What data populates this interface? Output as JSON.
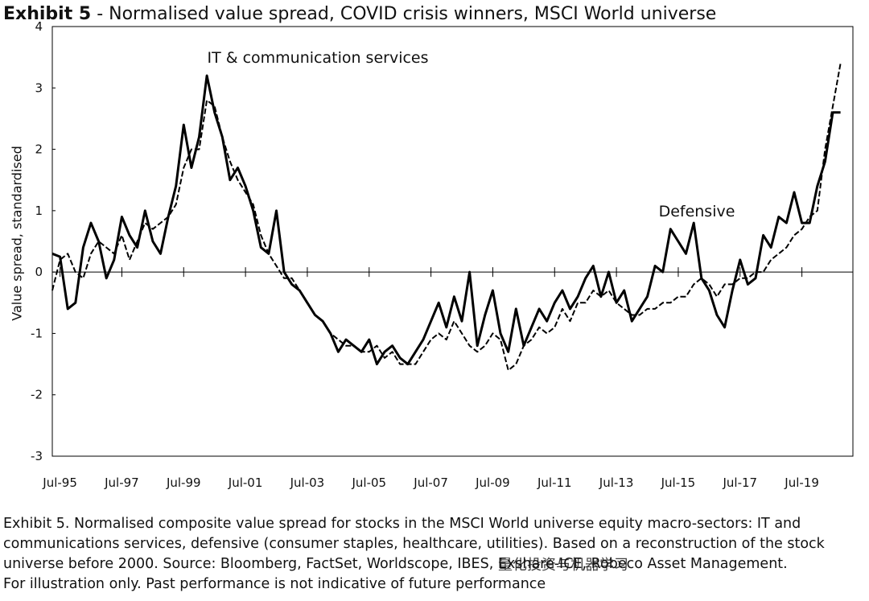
{
  "chart_data": {
    "type": "line",
    "title_label": "Exhibit 5",
    "title": "- Normalised value spread, COVID crisis winners, MSCI World universe",
    "y_label": "Value spread, standardised",
    "xlim": [
      1995.25,
      2021.15
    ],
    "ylim": [
      -3,
      4
    ],
    "yticks": [
      -3,
      -2,
      -1,
      0,
      1,
      2,
      3,
      4
    ],
    "xticks": [
      {
        "value": 1995.5,
        "label": "Jul-95"
      },
      {
        "value": 1997.5,
        "label": "Jul-97"
      },
      {
        "value": 1999.5,
        "label": "Jul-99"
      },
      {
        "value": 2001.5,
        "label": "Jul-01"
      },
      {
        "value": 2003.5,
        "label": "Jul-03"
      },
      {
        "value": 2005.5,
        "label": "Jul-05"
      },
      {
        "value": 2007.5,
        "label": "Jul-07"
      },
      {
        "value": 2009.5,
        "label": "Jul-09"
      },
      {
        "value": 2011.5,
        "label": "Jul-11"
      },
      {
        "value": 2013.5,
        "label": "Jul-13"
      },
      {
        "value": 2015.5,
        "label": "Jul-15"
      },
      {
        "value": 2017.5,
        "label": "Jul-17"
      },
      {
        "value": 2019.5,
        "label": "Jul-19"
      }
    ],
    "x": [
      1995.25,
      1995.5,
      1995.75,
      1996,
      1996.25,
      1996.5,
      1996.75,
      1997,
      1997.25,
      1997.5,
      1997.75,
      1998,
      1998.25,
      1998.5,
      1998.75,
      1999,
      1999.25,
      1999.5,
      1999.75,
      2000,
      2000.25,
      2000.5,
      2000.75,
      2001,
      2001.25,
      2001.5,
      2001.75,
      2002,
      2002.25,
      2002.5,
      2002.75,
      2003,
      2003.25,
      2003.5,
      2003.75,
      2004,
      2004.25,
      2004.5,
      2004.75,
      2005,
      2005.25,
      2005.5,
      2005.75,
      2006,
      2006.25,
      2006.5,
      2006.75,
      2007,
      2007.25,
      2007.5,
      2007.75,
      2008,
      2008.25,
      2008.5,
      2008.75,
      2009,
      2009.25,
      2009.5,
      2009.75,
      2010,
      2010.25,
      2010.5,
      2010.75,
      2011,
      2011.25,
      2011.5,
      2011.75,
      2012,
      2012.25,
      2012.5,
      2012.75,
      2013,
      2013.25,
      2013.5,
      2013.75,
      2014,
      2014.25,
      2014.5,
      2014.75,
      2015,
      2015.25,
      2015.5,
      2015.75,
      2016,
      2016.25,
      2016.5,
      2016.75,
      2017,
      2017.25,
      2017.5,
      2017.75,
      2018,
      2018.25,
      2018.5,
      2018.75,
      2019,
      2019.25,
      2019.5,
      2019.75,
      2020,
      2020.25,
      2020.5,
      2020.75
    ],
    "series": [
      {
        "name": "IT & communication services",
        "color": "#000000",
        "dash": false,
        "values": [
          0.3,
          0.25,
          -0.6,
          -0.5,
          0.4,
          0.8,
          0.5,
          -0.1,
          0.2,
          0.9,
          0.6,
          0.4,
          1.0,
          0.5,
          0.3,
          0.9,
          1.4,
          2.4,
          1.7,
          2.2,
          3.2,
          2.6,
          2.2,
          1.5,
          1.7,
          1.4,
          1.0,
          0.4,
          0.3,
          1.0,
          0.0,
          -0.2,
          -0.3,
          -0.5,
          -0.7,
          -0.8,
          -1.0,
          -1.3,
          -1.1,
          -1.2,
          -1.3,
          -1.1,
          -1.5,
          -1.3,
          -1.2,
          -1.4,
          -1.5,
          -1.3,
          -1.1,
          -0.8,
          -0.5,
          -0.9,
          -0.4,
          -0.8,
          0.0,
          -1.2,
          -0.7,
          -0.3,
          -1.0,
          -1.3,
          -0.6,
          -1.2,
          -0.9,
          -0.6,
          -0.8,
          -0.5,
          -0.3,
          -0.6,
          -0.4,
          -0.1,
          0.1,
          -0.4,
          0.0,
          -0.5,
          -0.3,
          -0.8,
          -0.6,
          -0.4,
          0.1,
          0.0,
          0.7,
          0.5,
          0.3,
          0.8,
          -0.1,
          -0.3,
          -0.7,
          -0.9,
          -0.3,
          0.2,
          -0.2,
          -0.1,
          0.6,
          0.4,
          0.9,
          0.8,
          1.3,
          0.8,
          0.8,
          1.4,
          1.8,
          2.6,
          2.6
        ]
      },
      {
        "name": "Defensive",
        "color": "#000000",
        "dash": true,
        "values": [
          -0.3,
          0.2,
          0.3,
          0.0,
          -0.1,
          0.3,
          0.5,
          0.4,
          0.3,
          0.6,
          0.2,
          0.5,
          0.8,
          0.7,
          0.8,
          0.9,
          1.1,
          1.7,
          2.0,
          2.0,
          2.8,
          2.7,
          2.2,
          1.8,
          1.5,
          1.3,
          1.1,
          0.6,
          0.3,
          0.1,
          -0.1,
          -0.1,
          -0.3,
          -0.5,
          -0.7,
          -0.8,
          -1.0,
          -1.1,
          -1.2,
          -1.2,
          -1.3,
          -1.3,
          -1.2,
          -1.4,
          -1.3,
          -1.5,
          -1.5,
          -1.5,
          -1.3,
          -1.1,
          -1.0,
          -1.1,
          -0.8,
          -1.0,
          -1.2,
          -1.3,
          -1.2,
          -1.0,
          -1.1,
          -1.6,
          -1.5,
          -1.2,
          -1.1,
          -0.9,
          -1.0,
          -0.9,
          -0.6,
          -0.8,
          -0.5,
          -0.5,
          -0.3,
          -0.4,
          -0.3,
          -0.5,
          -0.6,
          -0.7,
          -0.7,
          -0.6,
          -0.6,
          -0.5,
          -0.5,
          -0.4,
          -0.4,
          -0.2,
          -0.1,
          -0.2,
          -0.4,
          -0.2,
          -0.2,
          -0.1,
          -0.1,
          0.0,
          0.0,
          0.2,
          0.3,
          0.4,
          0.6,
          0.7,
          0.9,
          1.0,
          2.0,
          2.7,
          3.4
        ]
      }
    ],
    "footnote": [
      "Exhibit 5. Normalised composite value spread for stocks in the MSCI World universe equity macro-sectors: IT and",
      "communications services, defensive (consumer staples, healthcare, utilities). Based on a reconstruction of the stock",
      "universe before 2000. Source: Bloomberg, FactSet, Worldscope, IBES, Exshare-ICE, Robeco Asset Management.",
      "For illustration only. Past performance is not indicative of future performance"
    ],
    "watermark": "量化投资与机器学习"
  }
}
